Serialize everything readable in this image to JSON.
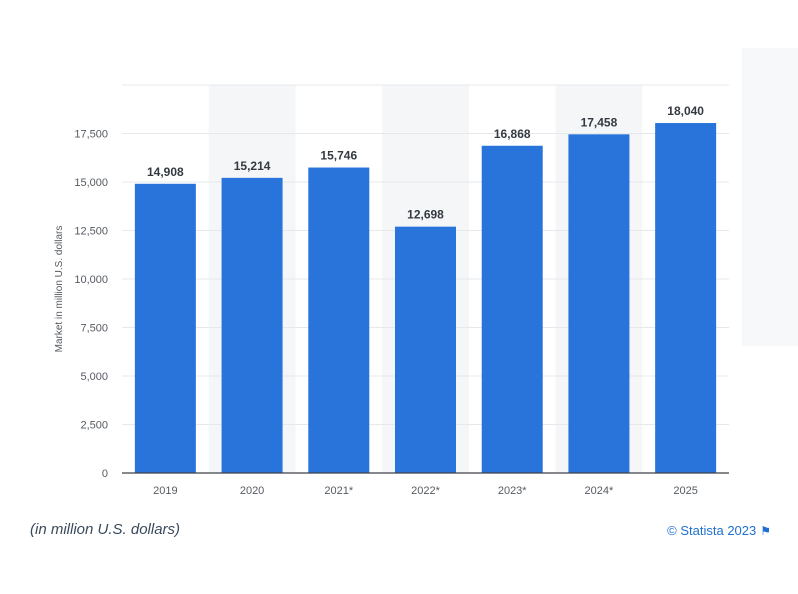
{
  "chart_data": {
    "type": "bar",
    "categories": [
      "2019",
      "2020",
      "2021*",
      "2022*",
      "2023*",
      "2024*",
      "2025"
    ],
    "values": [
      14908,
      15214,
      15746,
      12698,
      16868,
      17458,
      18040
    ],
    "value_labels": [
      "14,908",
      "15,214",
      "15,746",
      "12,698",
      "16,868",
      "17,458",
      "18,040"
    ],
    "ylabel": "Market in million U.S. dollars",
    "yticks": [
      0,
      2500,
      5000,
      7500,
      10000,
      12500,
      15000,
      17500
    ],
    "ytick_labels": [
      "0",
      "2,500",
      "5,000",
      "7,500",
      "10,000",
      "12,500",
      "15,000",
      "17,500"
    ],
    "ylim": [
      0,
      20000
    ],
    "grid": true,
    "bar_color": "#2874db",
    "alt_band_color": "#f5f6f8"
  },
  "footer": {
    "note": "(in million U.S. dollars)",
    "credit": "© Statista 2023"
  }
}
